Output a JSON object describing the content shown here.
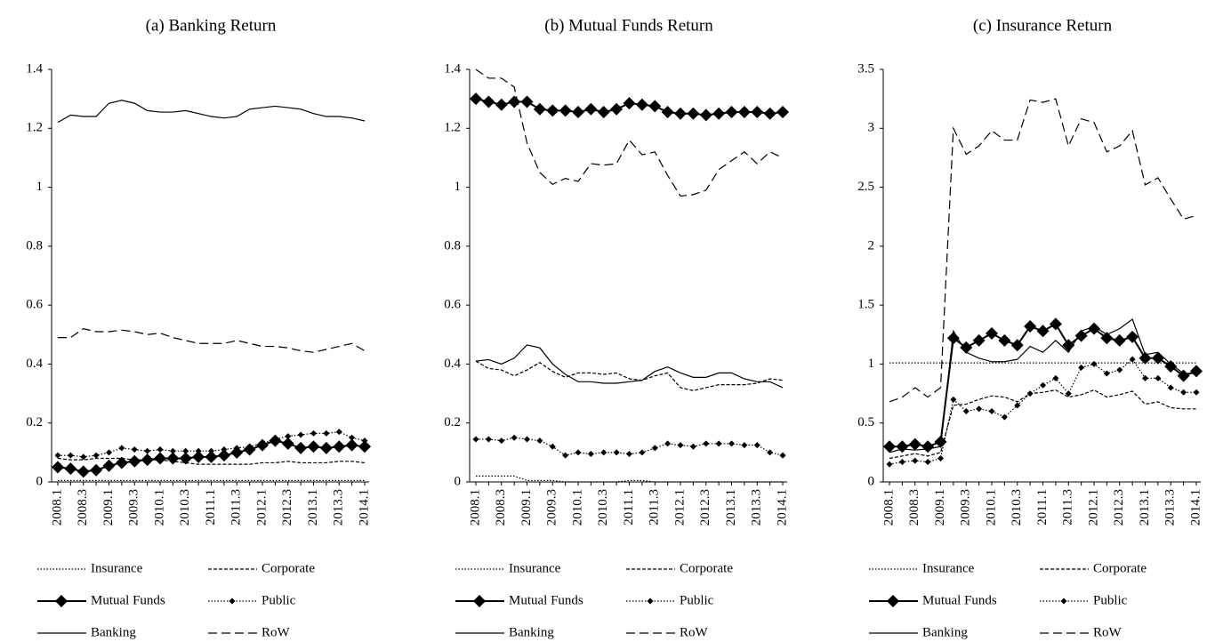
{
  "chart_data": [
    {
      "type": "line",
      "title": "(a) Banking Return",
      "legend": "bottom",
      "grid": false,
      "categories": [
        "2008.1",
        null,
        "2008.3",
        null,
        "2009.1",
        null,
        "2009.3",
        null,
        "2010.1",
        null,
        "2010.3",
        null,
        "2011.1",
        null,
        "2011.3",
        null,
        "2012.1",
        null,
        "2012.3",
        null,
        "2013.1",
        null,
        "2013.3",
        null,
        "2014.1"
      ],
      "ylim": [
        0,
        1.4
      ],
      "yticks": [
        0,
        0.2,
        0.4,
        0.6,
        0.8,
        1,
        1.2,
        1.4
      ],
      "series": [
        {
          "name": "Insurance",
          "color": "#000000",
          "line_style": "dotted",
          "values": [
            0.005,
            0.005,
            0.005,
            0.005,
            0.005,
            0.005,
            0.005,
            0.005,
            0.005,
            0.005,
            0.005,
            0.005,
            0.005,
            0.005,
            0.005,
            0.005,
            0.005,
            0.005,
            0.005,
            0.005,
            0.005,
            0.005,
            0.005,
            0.005,
            0.005
          ]
        },
        {
          "name": "Corporate",
          "color": "#000000",
          "line_style": "dashed",
          "values": [
            0.08,
            0.075,
            0.075,
            0.08,
            0.08,
            0.08,
            0.075,
            0.075,
            0.075,
            0.07,
            0.065,
            0.06,
            0.06,
            0.06,
            0.06,
            0.06,
            0.065,
            0.065,
            0.07,
            0.065,
            0.065,
            0.065,
            0.07,
            0.07,
            0.065
          ]
        },
        {
          "name": "Mutual Funds",
          "color": "#000000",
          "line_style": "solid",
          "marker": "diamond-large",
          "values": [
            0.05,
            0.045,
            0.035,
            0.04,
            0.055,
            0.065,
            0.07,
            0.075,
            0.08,
            0.08,
            0.08,
            0.085,
            0.085,
            0.09,
            0.1,
            0.11,
            0.125,
            0.14,
            0.13,
            0.115,
            0.12,
            0.115,
            0.12,
            0.125,
            0.12
          ]
        },
        {
          "name": "Public",
          "color": "#000000",
          "line_style": "dotted",
          "marker": "diamond-small",
          "values": [
            0.09,
            0.09,
            0.085,
            0.09,
            0.1,
            0.115,
            0.11,
            0.105,
            0.11,
            0.105,
            0.105,
            0.105,
            0.105,
            0.11,
            0.115,
            0.12,
            0.13,
            0.145,
            0.155,
            0.16,
            0.165,
            0.165,
            0.17,
            0.15,
            0.14
          ]
        },
        {
          "name": "Banking",
          "color": "#000000",
          "line_style": "solid",
          "values": [
            1.22,
            1.245,
            1.24,
            1.24,
            1.285,
            1.295,
            1.285,
            1.26,
            1.255,
            1.255,
            1.26,
            1.25,
            1.24,
            1.235,
            1.24,
            1.265,
            1.27,
            1.275,
            1.27,
            1.265,
            1.25,
            1.24,
            1.24,
            1.235,
            1.225
          ]
        },
        {
          "name": "RoW",
          "color": "#000000",
          "line_style": "long-dashed",
          "values": [
            0.49,
            0.49,
            0.52,
            0.51,
            0.51,
            0.515,
            0.51,
            0.5,
            0.505,
            0.49,
            0.48,
            0.47,
            0.47,
            0.47,
            0.48,
            0.47,
            0.46,
            0.46,
            0.455,
            0.445,
            0.44,
            0.45,
            0.46,
            0.47,
            0.445
          ]
        }
      ]
    },
    {
      "type": "line",
      "title": "(b) Mutual Funds Return",
      "legend": "bottom",
      "grid": false,
      "categories": [
        "2008.1",
        null,
        "2008.3",
        null,
        "2009.1",
        null,
        "2009.3",
        null,
        "2010.1",
        null,
        "2010.3",
        null,
        "2011.1",
        null,
        "2011.3",
        null,
        "2012.1",
        null,
        "2012.3",
        null,
        "2013.1",
        null,
        "2013.3",
        null,
        "2014.1"
      ],
      "ylim": [
        0,
        1.4
      ],
      "yticks": [
        0,
        0.2,
        0.4,
        0.6,
        0.8,
        1,
        1.2,
        1.4
      ],
      "series": [
        {
          "name": "Insurance",
          "color": "#000000",
          "line_style": "dotted",
          "values": [
            0.02,
            0.02,
            0.02,
            0.02,
            0.005,
            0.005,
            0.005,
            0,
            0,
            0,
            0,
            0,
            0.005,
            0.005,
            0,
            0,
            0,
            0,
            0,
            0,
            0,
            0,
            0,
            0,
            0
          ]
        },
        {
          "name": "Corporate",
          "color": "#000000",
          "line_style": "dashed",
          "values": [
            0.41,
            0.385,
            0.38,
            0.36,
            0.38,
            0.405,
            0.375,
            0.355,
            0.37,
            0.37,
            0.365,
            0.37,
            0.35,
            0.345,
            0.36,
            0.37,
            0.32,
            0.31,
            0.32,
            0.33,
            0.33,
            0.33,
            0.335,
            0.35,
            0.345
          ]
        },
        {
          "name": "Mutual Funds",
          "color": "#000000",
          "line_style": "solid",
          "marker": "diamond-large",
          "values": [
            1.3,
            1.29,
            1.28,
            1.29,
            1.29,
            1.265,
            1.26,
            1.26,
            1.255,
            1.265,
            1.255,
            1.265,
            1.285,
            1.28,
            1.275,
            1.255,
            1.25,
            1.25,
            1.245,
            1.25,
            1.255,
            1.255,
            1.255,
            1.25,
            1.255
          ]
        },
        {
          "name": "Public",
          "color": "#000000",
          "line_style": "dotted",
          "marker": "diamond-small",
          "values": [
            0.145,
            0.145,
            0.14,
            0.15,
            0.145,
            0.14,
            0.12,
            0.09,
            0.1,
            0.095,
            0.1,
            0.1,
            0.095,
            0.1,
            0.115,
            0.13,
            0.125,
            0.12,
            0.13,
            0.13,
            0.13,
            0.125,
            0.125,
            0.1,
            0.09
          ]
        },
        {
          "name": "Banking",
          "color": "#000000",
          "line_style": "solid",
          "values": [
            0.41,
            0.415,
            0.4,
            0.42,
            0.465,
            0.455,
            0.4,
            0.365,
            0.34,
            0.34,
            0.335,
            0.335,
            0.34,
            0.345,
            0.375,
            0.39,
            0.37,
            0.355,
            0.355,
            0.37,
            0.37,
            0.35,
            0.34,
            0.34,
            0.32
          ]
        },
        {
          "name": "RoW",
          "color": "#000000",
          "line_style": "long-dashed",
          "values": [
            1.4,
            1.37,
            1.37,
            1.34,
            1.15,
            1.05,
            1.01,
            1.03,
            1.02,
            1.08,
            1.075,
            1.08,
            1.16,
            1.11,
            1.12,
            1.04,
            0.97,
            0.975,
            0.99,
            1.06,
            1.09,
            1.12,
            1.08,
            1.12,
            1.1
          ]
        }
      ]
    },
    {
      "type": "line",
      "title": "(c) Insurance Return",
      "legend": "bottom",
      "grid": false,
      "categories": [
        "2008.1",
        null,
        "2008.3",
        null,
        "2009.1",
        null,
        "2009.3",
        null,
        "2010.1",
        null,
        "2010.3",
        null,
        "2011.1",
        null,
        "2011.3",
        null,
        "2012.1",
        null,
        "2012.3",
        null,
        "2013.1",
        null,
        "2013.3",
        null,
        "2014.1"
      ],
      "ylim": [
        0,
        3.5
      ],
      "yticks": [
        0,
        0.5,
        1,
        1.5,
        2,
        2.5,
        3,
        3.5
      ],
      "series": [
        {
          "name": "Insurance",
          "color": "#000000",
          "line_style": "dotted",
          "values": [
            1.01,
            1.01,
            1.01,
            1.01,
            1.01,
            1.01,
            1.01,
            1.01,
            1.01,
            1.01,
            1.01,
            1.01,
            1.01,
            1.01,
            1.01,
            1.01,
            1.01,
            1.01,
            1.01,
            1.01,
            1.01,
            1.01,
            1.01,
            1.01,
            1.01
          ]
        },
        {
          "name": "Corporate",
          "color": "#000000",
          "line_style": "dashed",
          "values": [
            0.2,
            0.22,
            0.24,
            0.22,
            0.25,
            0.65,
            0.66,
            0.7,
            0.73,
            0.72,
            0.68,
            0.75,
            0.76,
            0.78,
            0.72,
            0.74,
            0.78,
            0.72,
            0.74,
            0.77,
            0.66,
            0.68,
            0.63,
            0.62,
            0.62
          ]
        },
        {
          "name": "Mutual Funds",
          "color": "#000000",
          "line_style": "solid",
          "marker": "diamond-large",
          "values": [
            0.3,
            0.3,
            0.32,
            0.3,
            0.34,
            1.22,
            1.14,
            1.2,
            1.26,
            1.2,
            1.16,
            1.32,
            1.28,
            1.34,
            1.16,
            1.24,
            1.3,
            1.22,
            1.2,
            1.23,
            1.05,
            1.05,
            0.98,
            0.9,
            0.94
          ]
        },
        {
          "name": "Public",
          "color": "#000000",
          "line_style": "dotted",
          "marker": "diamond-small",
          "values": [
            0.15,
            0.17,
            0.18,
            0.17,
            0.2,
            0.7,
            0.6,
            0.62,
            0.6,
            0.55,
            0.65,
            0.75,
            0.82,
            0.88,
            0.75,
            0.97,
            1.0,
            0.92,
            0.95,
            1.04,
            0.88,
            0.88,
            0.8,
            0.76,
            0.76
          ]
        },
        {
          "name": "Banking",
          "color": "#000000",
          "line_style": "solid",
          "values": [
            0.25,
            0.28,
            0.27,
            0.28,
            0.3,
            1.28,
            1.1,
            1.05,
            1.02,
            1.02,
            1.04,
            1.15,
            1.1,
            1.2,
            1.1,
            1.28,
            1.32,
            1.25,
            1.3,
            1.38,
            1.08,
            1.1,
            1.0,
            0.92,
            0.92
          ]
        },
        {
          "name": "RoW",
          "color": "#000000",
          "line_style": "long-dashed",
          "values": [
            0.68,
            0.72,
            0.8,
            0.72,
            0.8,
            3.0,
            2.78,
            2.85,
            2.98,
            2.9,
            2.9,
            3.24,
            3.22,
            3.25,
            2.85,
            3.08,
            3.05,
            2.8,
            2.85,
            2.98,
            2.52,
            2.58,
            2.4,
            2.23,
            2.26
          ]
        }
      ]
    }
  ]
}
